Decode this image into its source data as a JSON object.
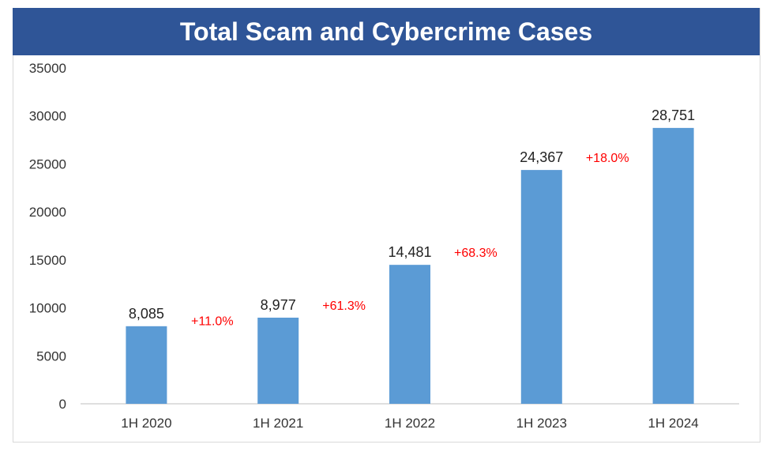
{
  "chart_data": {
    "type": "bar",
    "title": "Total Scam and Cybercrime Cases",
    "categories": [
      "1H 2020",
      "1H 2021",
      "1H 2022",
      "1H 2023",
      "1H 2024"
    ],
    "values": [
      8085,
      8977,
      14481,
      24367,
      28751
    ],
    "data_labels": [
      "8,085",
      "8,977",
      "14,481",
      "24,367",
      "28,751"
    ],
    "growth_labels": [
      "+11.0%",
      "+61.3%",
      "+68.3%",
      "+18.0%"
    ],
    "y_ticks": [
      "0",
      "5000",
      "10000",
      "15000",
      "20000",
      "25000",
      "30000",
      "35000"
    ],
    "ylim": [
      0,
      35000
    ],
    "grid": false,
    "legend": "none",
    "xlabel": "",
    "ylabel": ""
  },
  "colors": {
    "bar": "#5b9bd5",
    "title_bg": "#2f5597",
    "growth": "#ff0000",
    "axis": "#bfbfbf"
  }
}
